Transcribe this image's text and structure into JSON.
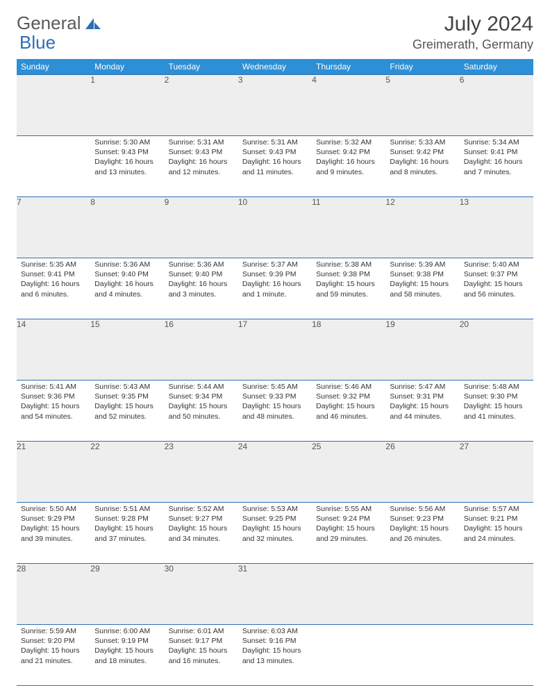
{
  "brand": {
    "part1": "General",
    "part2": "Blue"
  },
  "title": "July 2024",
  "location": "Greimerath, Germany",
  "colors": {
    "header_bg": "#2d8fd5",
    "header_text": "#ffffff",
    "row_sep": "#2d6fb5",
    "daynum_bg": "#eeeeee",
    "text": "#333333",
    "brand_gray": "#5a5a5a",
    "brand_blue": "#2d6fb5"
  },
  "day_headers": [
    "Sunday",
    "Monday",
    "Tuesday",
    "Wednesday",
    "Thursday",
    "Friday",
    "Saturday"
  ],
  "weeks": [
    {
      "nums": [
        "",
        "1",
        "2",
        "3",
        "4",
        "5",
        "6"
      ],
      "cells": [
        null,
        {
          "sunrise": "Sunrise: 5:30 AM",
          "sunset": "Sunset: 9:43 PM",
          "dl1": "Daylight: 16 hours",
          "dl2": "and 13 minutes."
        },
        {
          "sunrise": "Sunrise: 5:31 AM",
          "sunset": "Sunset: 9:43 PM",
          "dl1": "Daylight: 16 hours",
          "dl2": "and 12 minutes."
        },
        {
          "sunrise": "Sunrise: 5:31 AM",
          "sunset": "Sunset: 9:43 PM",
          "dl1": "Daylight: 16 hours",
          "dl2": "and 11 minutes."
        },
        {
          "sunrise": "Sunrise: 5:32 AM",
          "sunset": "Sunset: 9:42 PM",
          "dl1": "Daylight: 16 hours",
          "dl2": "and 9 minutes."
        },
        {
          "sunrise": "Sunrise: 5:33 AM",
          "sunset": "Sunset: 9:42 PM",
          "dl1": "Daylight: 16 hours",
          "dl2": "and 8 minutes."
        },
        {
          "sunrise": "Sunrise: 5:34 AM",
          "sunset": "Sunset: 9:41 PM",
          "dl1": "Daylight: 16 hours",
          "dl2": "and 7 minutes."
        }
      ]
    },
    {
      "nums": [
        "7",
        "8",
        "9",
        "10",
        "11",
        "12",
        "13"
      ],
      "cells": [
        {
          "sunrise": "Sunrise: 5:35 AM",
          "sunset": "Sunset: 9:41 PM",
          "dl1": "Daylight: 16 hours",
          "dl2": "and 6 minutes."
        },
        {
          "sunrise": "Sunrise: 5:36 AM",
          "sunset": "Sunset: 9:40 PM",
          "dl1": "Daylight: 16 hours",
          "dl2": "and 4 minutes."
        },
        {
          "sunrise": "Sunrise: 5:36 AM",
          "sunset": "Sunset: 9:40 PM",
          "dl1": "Daylight: 16 hours",
          "dl2": "and 3 minutes."
        },
        {
          "sunrise": "Sunrise: 5:37 AM",
          "sunset": "Sunset: 9:39 PM",
          "dl1": "Daylight: 16 hours",
          "dl2": "and 1 minute."
        },
        {
          "sunrise": "Sunrise: 5:38 AM",
          "sunset": "Sunset: 9:38 PM",
          "dl1": "Daylight: 15 hours",
          "dl2": "and 59 minutes."
        },
        {
          "sunrise": "Sunrise: 5:39 AM",
          "sunset": "Sunset: 9:38 PM",
          "dl1": "Daylight: 15 hours",
          "dl2": "and 58 minutes."
        },
        {
          "sunrise": "Sunrise: 5:40 AM",
          "sunset": "Sunset: 9:37 PM",
          "dl1": "Daylight: 15 hours",
          "dl2": "and 56 minutes."
        }
      ]
    },
    {
      "nums": [
        "14",
        "15",
        "16",
        "17",
        "18",
        "19",
        "20"
      ],
      "cells": [
        {
          "sunrise": "Sunrise: 5:41 AM",
          "sunset": "Sunset: 9:36 PM",
          "dl1": "Daylight: 15 hours",
          "dl2": "and 54 minutes."
        },
        {
          "sunrise": "Sunrise: 5:43 AM",
          "sunset": "Sunset: 9:35 PM",
          "dl1": "Daylight: 15 hours",
          "dl2": "and 52 minutes."
        },
        {
          "sunrise": "Sunrise: 5:44 AM",
          "sunset": "Sunset: 9:34 PM",
          "dl1": "Daylight: 15 hours",
          "dl2": "and 50 minutes."
        },
        {
          "sunrise": "Sunrise: 5:45 AM",
          "sunset": "Sunset: 9:33 PM",
          "dl1": "Daylight: 15 hours",
          "dl2": "and 48 minutes."
        },
        {
          "sunrise": "Sunrise: 5:46 AM",
          "sunset": "Sunset: 9:32 PM",
          "dl1": "Daylight: 15 hours",
          "dl2": "and 46 minutes."
        },
        {
          "sunrise": "Sunrise: 5:47 AM",
          "sunset": "Sunset: 9:31 PM",
          "dl1": "Daylight: 15 hours",
          "dl2": "and 44 minutes."
        },
        {
          "sunrise": "Sunrise: 5:48 AM",
          "sunset": "Sunset: 9:30 PM",
          "dl1": "Daylight: 15 hours",
          "dl2": "and 41 minutes."
        }
      ]
    },
    {
      "nums": [
        "21",
        "22",
        "23",
        "24",
        "25",
        "26",
        "27"
      ],
      "cells": [
        {
          "sunrise": "Sunrise: 5:50 AM",
          "sunset": "Sunset: 9:29 PM",
          "dl1": "Daylight: 15 hours",
          "dl2": "and 39 minutes."
        },
        {
          "sunrise": "Sunrise: 5:51 AM",
          "sunset": "Sunset: 9:28 PM",
          "dl1": "Daylight: 15 hours",
          "dl2": "and 37 minutes."
        },
        {
          "sunrise": "Sunrise: 5:52 AM",
          "sunset": "Sunset: 9:27 PM",
          "dl1": "Daylight: 15 hours",
          "dl2": "and 34 minutes."
        },
        {
          "sunrise": "Sunrise: 5:53 AM",
          "sunset": "Sunset: 9:25 PM",
          "dl1": "Daylight: 15 hours",
          "dl2": "and 32 minutes."
        },
        {
          "sunrise": "Sunrise: 5:55 AM",
          "sunset": "Sunset: 9:24 PM",
          "dl1": "Daylight: 15 hours",
          "dl2": "and 29 minutes."
        },
        {
          "sunrise": "Sunrise: 5:56 AM",
          "sunset": "Sunset: 9:23 PM",
          "dl1": "Daylight: 15 hours",
          "dl2": "and 26 minutes."
        },
        {
          "sunrise": "Sunrise: 5:57 AM",
          "sunset": "Sunset: 9:21 PM",
          "dl1": "Daylight: 15 hours",
          "dl2": "and 24 minutes."
        }
      ]
    },
    {
      "nums": [
        "28",
        "29",
        "30",
        "31",
        "",
        "",
        ""
      ],
      "cells": [
        {
          "sunrise": "Sunrise: 5:59 AM",
          "sunset": "Sunset: 9:20 PM",
          "dl1": "Daylight: 15 hours",
          "dl2": "and 21 minutes."
        },
        {
          "sunrise": "Sunrise: 6:00 AM",
          "sunset": "Sunset: 9:19 PM",
          "dl1": "Daylight: 15 hours",
          "dl2": "and 18 minutes."
        },
        {
          "sunrise": "Sunrise: 6:01 AM",
          "sunset": "Sunset: 9:17 PM",
          "dl1": "Daylight: 15 hours",
          "dl2": "and 16 minutes."
        },
        {
          "sunrise": "Sunrise: 6:03 AM",
          "sunset": "Sunset: 9:16 PM",
          "dl1": "Daylight: 15 hours",
          "dl2": "and 13 minutes."
        },
        null,
        null,
        null
      ]
    }
  ]
}
